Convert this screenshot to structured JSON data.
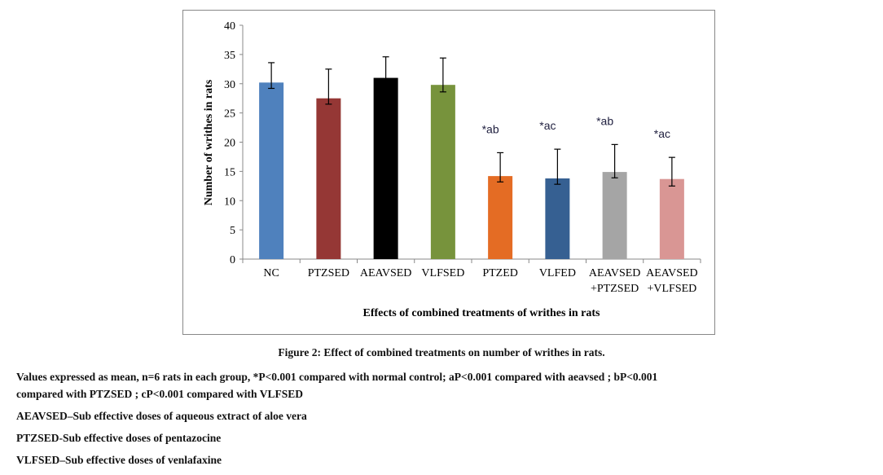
{
  "chart_data": {
    "type": "bar",
    "title": "",
    "xlabel": "Effects of combined treatments of writhes in rats",
    "ylabel": "Number of writhes in rats",
    "ylim": [
      0,
      40
    ],
    "yticks": [
      0,
      5,
      10,
      15,
      20,
      25,
      30,
      35,
      40
    ],
    "grid": false,
    "categories": [
      "NC",
      "PTZSED",
      "AEAVSED",
      "VLFSED",
      "PTZED",
      "VLFED",
      "AEAVSED +PTZSED",
      "AEAVSED +VLFSED"
    ],
    "category_lines": [
      [
        "NC"
      ],
      [
        "PTZSED"
      ],
      [
        "AEAVSED"
      ],
      [
        "VLFSED"
      ],
      [
        "PTZED"
      ],
      [
        "VLFED"
      ],
      [
        "AEAVSED",
        "+PTZSED"
      ],
      [
        "AEAVSED",
        "+VLFSED"
      ]
    ],
    "values": [
      30.2,
      27.5,
      31.0,
      29.8,
      14.2,
      13.8,
      14.9,
      13.7
    ],
    "error_upper": [
      33.6,
      32.5,
      34.6,
      34.4,
      18.2,
      18.8,
      19.6,
      17.4
    ],
    "error_lower": [
      29.2,
      26.5,
      30.0,
      28.6,
      13.2,
      12.8,
      13.9,
      12.5
    ],
    "colors": [
      "#4f81bd",
      "#953735",
      "#000000",
      "#77933c",
      "#e46c24",
      "#366092",
      "#a5a5a5",
      "#d99694"
    ],
    "annotations": [
      "",
      "",
      "",
      "",
      "*ab",
      "*ac",
      "*ab",
      "*ac"
    ],
    "annotation_color": "#1f1f3f"
  },
  "caption": {
    "figure": "Figure 2: Effect of combined treatments on number of writhes in rats.",
    "notes": [
      "Values expressed as mean, n=6 rats in each group, *P<0.001 compared with normal control; aP<0.001 compared with aeavsed ; bP<0.001",
      "compared with PTZSED ;  cP<0.001 compared with VLFSED",
      "AEAVSED–Sub effective doses of aqueous extract of aloe vera",
      "PTZSED-Sub effective doses of pentazocine",
      "VLFSED–Sub effective doses of venlafaxine"
    ]
  }
}
